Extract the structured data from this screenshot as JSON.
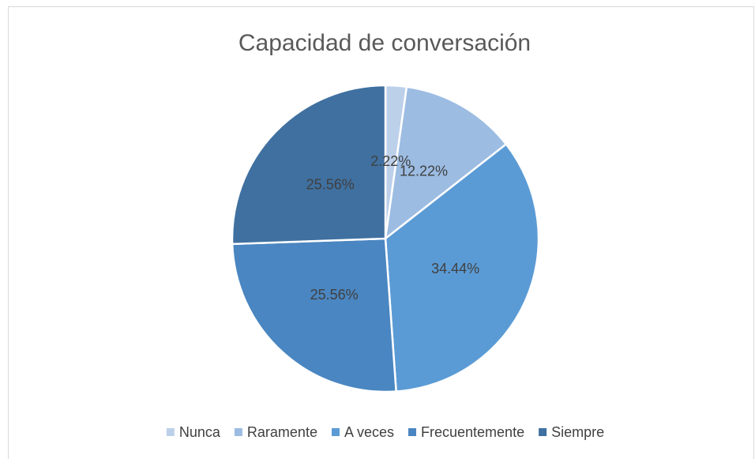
{
  "chart_data": {
    "type": "pie",
    "title": "Capacidad de conversación",
    "categories": [
      "Nunca",
      "Raramente",
      "A veces",
      "Frecuentemente",
      "Siempre"
    ],
    "values": [
      2.22,
      12.22,
      34.44,
      25.56,
      25.56
    ],
    "value_labels": [
      "2.22%",
      "12.22%",
      "34.44%",
      "25.56%",
      "25.56%"
    ],
    "colors": [
      "#bdd0ea",
      "#9cbce2",
      "#5b9bd5",
      "#4a86c1",
      "#3f70a0"
    ],
    "legend": "bottom"
  }
}
